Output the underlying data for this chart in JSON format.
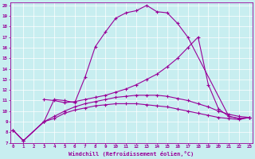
{
  "xlabel": "Windchill (Refroidissement éolien,°C)",
  "bg_color": "#c8eef0",
  "line_color": "#990099",
  "xlim": [
    -0.3,
    23.3
  ],
  "ylim": [
    7,
    20.3
  ],
  "xticks": [
    0,
    1,
    2,
    3,
    4,
    5,
    6,
    7,
    8,
    9,
    10,
    11,
    12,
    13,
    14,
    15,
    16,
    17,
    18,
    19,
    20,
    21,
    22,
    23
  ],
  "yticks": [
    7,
    8,
    9,
    10,
    11,
    12,
    13,
    14,
    15,
    16,
    17,
    18,
    19,
    20
  ],
  "lines": [
    {
      "x": [
        0,
        1,
        3,
        4,
        5,
        6,
        7,
        8,
        9,
        10,
        11,
        12,
        13,
        14,
        15,
        16,
        17,
        21,
        22,
        23
      ],
      "y": [
        8.2,
        7.2,
        9.0,
        11.1,
        11.0,
        10.8,
        13.2,
        16.1,
        17.5,
        18.8,
        19.3,
        19.5,
        20.0,
        19.4,
        19.3,
        18.3,
        17.0,
        9.5,
        9.3,
        9.4
      ]
    },
    {
      "x": [
        3,
        4,
        5,
        6,
        7,
        8,
        9,
        10,
        11,
        12,
        13,
        14,
        15,
        16,
        17,
        18,
        19,
        20,
        21,
        22,
        23
      ],
      "y": [
        11.1,
        11.0,
        10.8,
        10.9,
        11.1,
        11.3,
        11.5,
        11.8,
        12.1,
        12.5,
        13.0,
        13.5,
        14.2,
        15.0,
        16.0,
        17.0,
        12.5,
        10.2,
        9.5,
        9.3,
        9.4
      ]
    },
    {
      "x": [
        0,
        1,
        3,
        4,
        5,
        6,
        7,
        8,
        9,
        10,
        11,
        12,
        13,
        14,
        15,
        16,
        17,
        18,
        19,
        20,
        21,
        22,
        23
      ],
      "y": [
        8.2,
        7.2,
        9.0,
        9.3,
        9.8,
        10.1,
        10.3,
        10.5,
        10.6,
        10.7,
        10.7,
        10.7,
        10.6,
        10.5,
        10.4,
        10.2,
        10.0,
        9.8,
        9.6,
        9.4,
        9.3,
        9.2,
        9.4
      ]
    },
    {
      "x": [
        0,
        1,
        3,
        4,
        5,
        6,
        7,
        8,
        9,
        10,
        11,
        12,
        13,
        14,
        15,
        16,
        17,
        18,
        19,
        20,
        21,
        22,
        23
      ],
      "y": [
        8.2,
        7.2,
        9.0,
        9.5,
        10.0,
        10.4,
        10.7,
        10.9,
        11.1,
        11.3,
        11.4,
        11.5,
        11.5,
        11.5,
        11.4,
        11.2,
        11.0,
        10.7,
        10.4,
        10.0,
        9.7,
        9.5,
        9.4
      ]
    }
  ]
}
